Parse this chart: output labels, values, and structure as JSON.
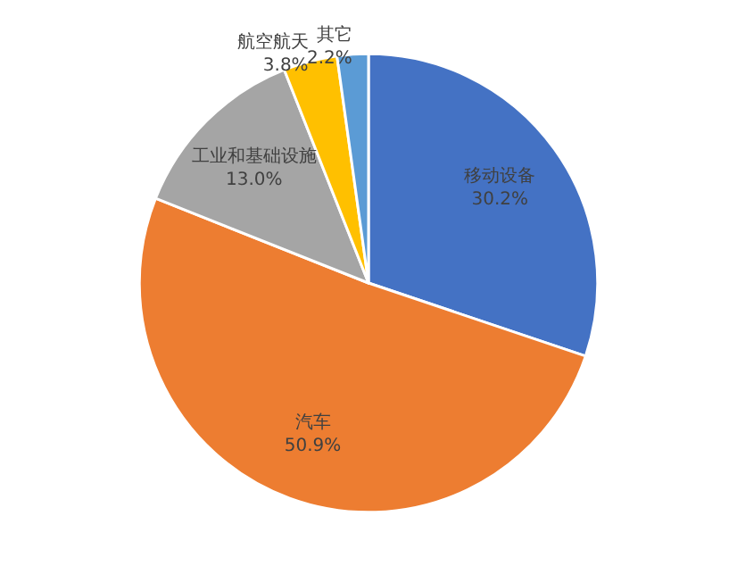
{
  "chart_data": {
    "type": "pie",
    "categories": [
      "移动设备",
      "汽车",
      "工业和基础设施",
      "航空航天",
      "其它"
    ],
    "values": [
      30.2,
      50.9,
      13.0,
      3.8,
      2.2
    ],
    "colors": [
      "#4472c4",
      "#ed7d31",
      "#a5a5a5",
      "#ffc000",
      "#5b9bd5"
    ],
    "value_labels": [
      "30.2%",
      "50.9%",
      "13.0%",
      "3.8%",
      "2.2%"
    ],
    "legend": false
  }
}
